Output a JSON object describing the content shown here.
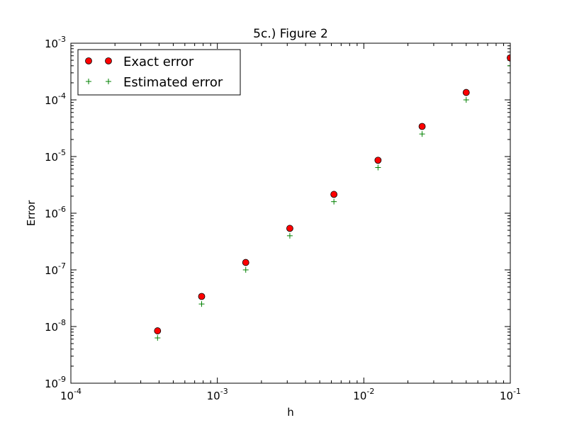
{
  "chart_data": {
    "type": "scatter",
    "title": "5c.) Figure 2",
    "xlabel": "h",
    "ylabel": "Error",
    "xscale": "log",
    "yscale": "log",
    "xlim": [
      0.0001,
      0.1
    ],
    "ylim": [
      1e-09,
      0.001
    ],
    "grid": false,
    "legend": "upper-left",
    "x_ticks": [
      {
        "value": 0.0001,
        "base": "10",
        "exp": "-4"
      },
      {
        "value": 0.001,
        "base": "10",
        "exp": "-3"
      },
      {
        "value": 0.01,
        "base": "10",
        "exp": "-2"
      },
      {
        "value": 0.1,
        "base": "10",
        "exp": "-1"
      }
    ],
    "y_ticks": [
      {
        "value": 1e-09,
        "base": "10",
        "exp": "-9"
      },
      {
        "value": 1e-08,
        "base": "10",
        "exp": "-8"
      },
      {
        "value": 1e-07,
        "base": "10",
        "exp": "-7"
      },
      {
        "value": 1e-06,
        "base": "10",
        "exp": "-6"
      },
      {
        "value": 1e-05,
        "base": "10",
        "exp": "-5"
      },
      {
        "value": 0.0001,
        "base": "10",
        "exp": "-4"
      },
      {
        "value": 0.001,
        "base": "10",
        "exp": "-3"
      }
    ],
    "x": [
      0.000390625,
      0.00078125,
      0.0015625,
      0.003125,
      0.00625,
      0.0125,
      0.025,
      0.05,
      0.1
    ],
    "series": [
      {
        "name": "Exact error",
        "marker": "circle",
        "color": "#ff0000",
        "values": [
          8.4e-09,
          3.4e-08,
          1.35e-07,
          5.4e-07,
          2.15e-06,
          8.6e-06,
          3.4e-05,
          0.000135,
          0.00055
        ]
      },
      {
        "name": "Estimated error",
        "marker": "plus",
        "color": "#008000",
        "values": [
          6.3e-09,
          2.5e-08,
          1e-07,
          4e-07,
          1.6e-06,
          6.4e-06,
          2.5e-05,
          0.0001,
          0.0004
        ]
      }
    ]
  }
}
